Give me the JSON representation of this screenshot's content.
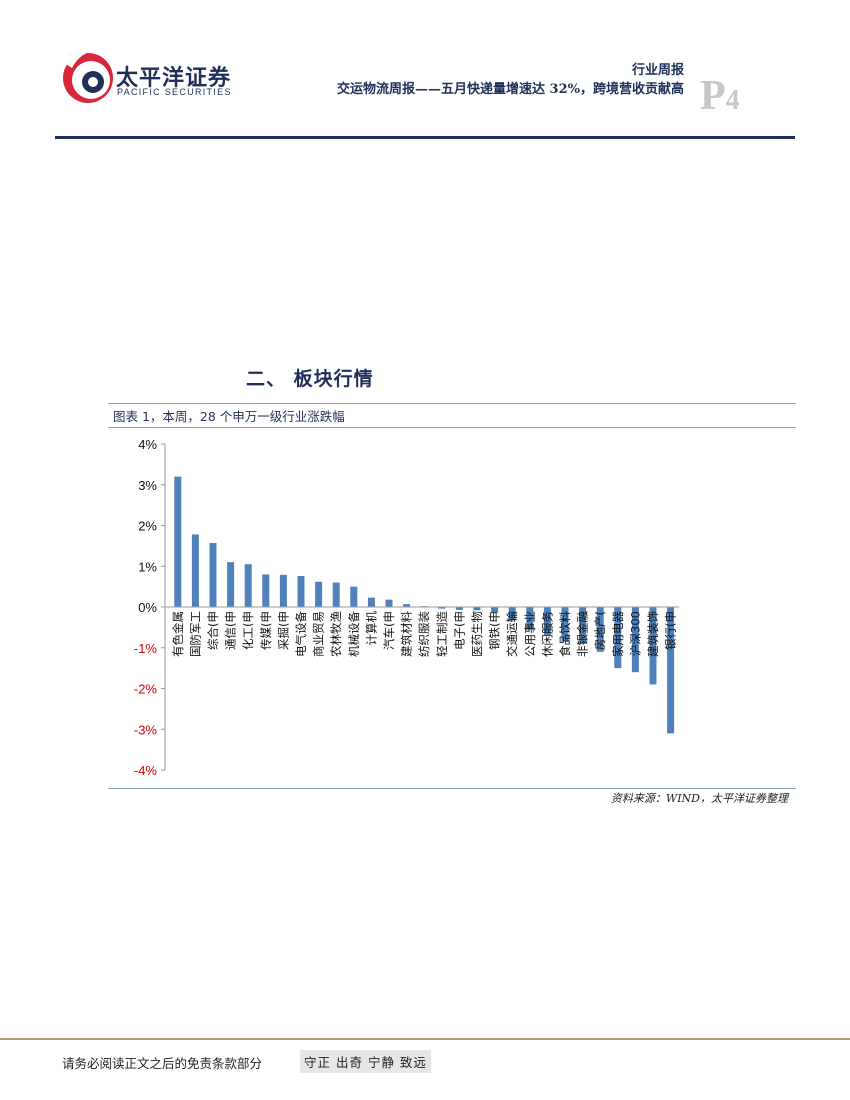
{
  "header": {
    "logo_cn": "太平洋证券",
    "logo_en": "PACIFIC SECURITIES",
    "category": "行业周报",
    "report_title": "交运物流周报——五月快递量增速达 32%，跨境营收贡献高",
    "page_letter": "P",
    "page_number": "4"
  },
  "section": {
    "heading": "二、 板块行情",
    "figure_caption": "图表 1，本周，28 个申万一级行业涨跌幅",
    "source": "资料来源：WIND，太平洋证券整理"
  },
  "colors": {
    "brand_navy": "#1f2f57",
    "logo_red": "#d6283a",
    "bar_blue": "#4f81bd",
    "negative_tick": "#cc0000",
    "footer_rule": "#b39b6e"
  },
  "chart_data": {
    "type": "bar",
    "categories": [
      "有色金属",
      "国防军工",
      "综合(申",
      "通信(申",
      "化工(申",
      "传媒(申",
      "采掘(申",
      "电气设备",
      "商业贸易",
      "农林牧渔",
      "机械设备",
      "计算机",
      "汽车(申",
      "建筑材料",
      "纺织服装",
      "轻工制造",
      "电子(申",
      "医药生物",
      "钢铁(申",
      "交通运输",
      "公用事业",
      "休闲服务",
      "食品饮料",
      "非银金融",
      "房地产(",
      "家用电器",
      "沪深300",
      "建筑装饰",
      "银行(申"
    ],
    "values": [
      3.2,
      1.78,
      1.57,
      1.1,
      1.05,
      0.8,
      0.79,
      0.76,
      0.62,
      0.6,
      0.5,
      0.23,
      0.18,
      0.07,
      0.02,
      -0.04,
      -0.07,
      -0.08,
      -0.13,
      -0.33,
      -0.55,
      -0.7,
      -0.85,
      -0.9,
      -1.1,
      -1.5,
      -1.6,
      -1.9,
      -3.1
    ],
    "yticks": [
      "4%",
      "3%",
      "2%",
      "1%",
      "0%",
      "-1%",
      "-2%",
      "-3%",
      "-4%"
    ],
    "ylim": [
      -4,
      4
    ],
    "grid": false,
    "legend": "none"
  },
  "footer": {
    "disclaimer": "请务必阅读正文之后的免责条款部分",
    "motto": "守正 出奇 宁静 致远"
  }
}
